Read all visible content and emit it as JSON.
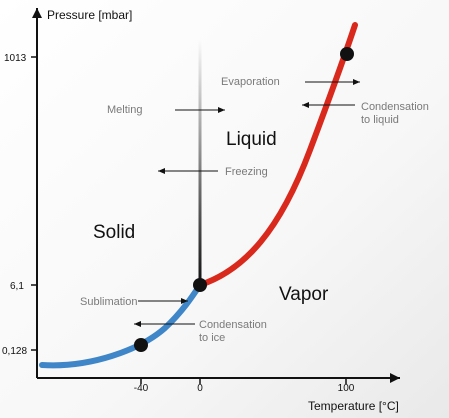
{
  "axes": {
    "y_label": "Pressure [mbar]",
    "x_label": "Temperature [°C]",
    "y_ticks": [
      "1013",
      "6,1",
      "0,128"
    ],
    "x_ticks": [
      "-40",
      "0",
      "100"
    ]
  },
  "regions": {
    "solid": "Solid",
    "liquid": "Liquid",
    "vapor": "Vapor"
  },
  "transitions": {
    "evaporation": "Evaporation",
    "condensation_liquid_1": "Condensation",
    "condensation_liquid_2": "to liquid",
    "melting": "Melting",
    "freezing": "Freezing",
    "sublimation": "Sublimation",
    "condensation_ice_1": "Condensation",
    "condensation_ice_2": "to ice"
  },
  "colors": {
    "sublimation_curve": "#3f86c8",
    "vaporization_curve": "#d9291c",
    "melting_line": "#111111",
    "axis": "#111111",
    "label": "#7a7a7a",
    "region": "#111111"
  }
}
